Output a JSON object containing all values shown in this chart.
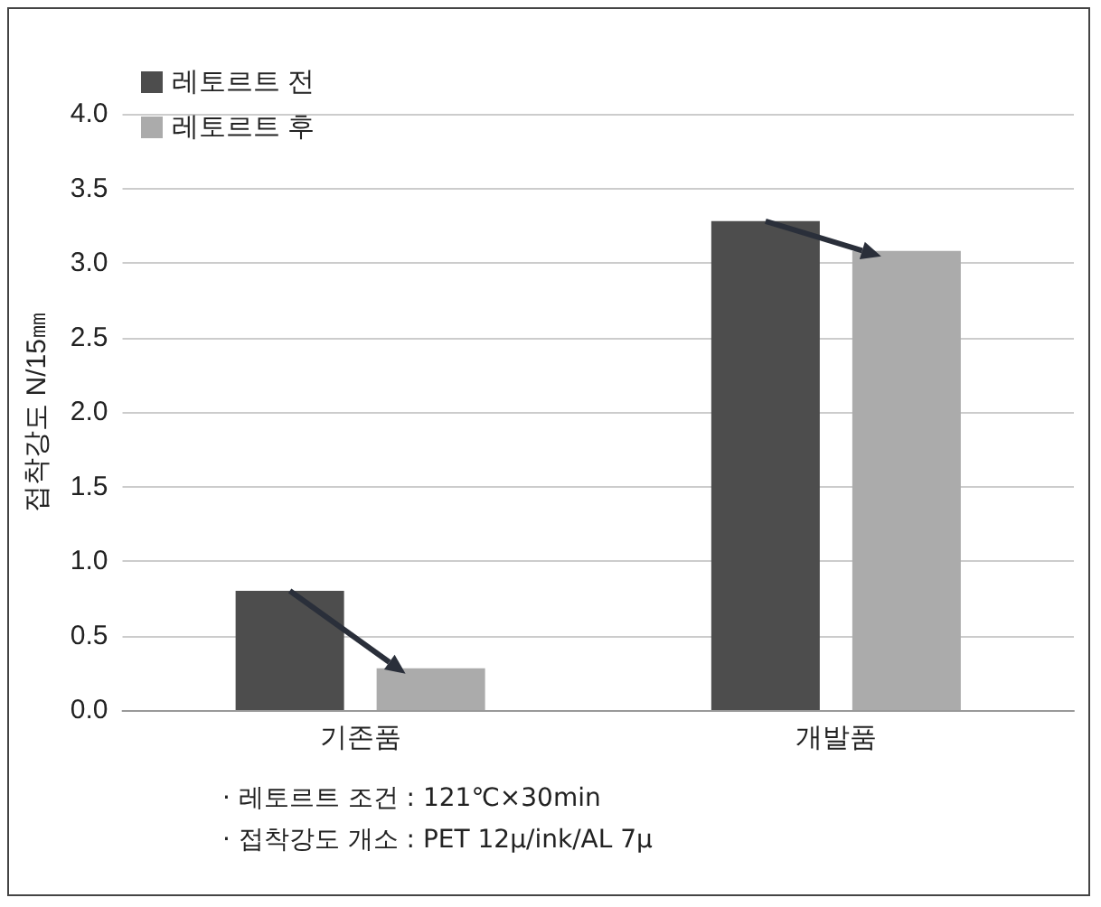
{
  "chart_data": {
    "type": "bar",
    "ylabel": "접착강도 N/15㎜",
    "categories": [
      "기존품",
      "개발품"
    ],
    "series": [
      {
        "name": "레토르트 전",
        "color": "#4d4d4d",
        "values": [
          0.8,
          3.28
        ]
      },
      {
        "name": "레토르트 후",
        "color": "#ababab",
        "values": [
          0.28,
          3.08
        ]
      }
    ],
    "ylim": [
      0,
      4
    ],
    "yticks": [
      {
        "value": 0,
        "label": "0.0"
      },
      {
        "value": 0.5,
        "label": "0.5"
      },
      {
        "value": 1,
        "label": "1.0"
      },
      {
        "value": 1.5,
        "label": "1.5"
      },
      {
        "value": 2,
        "label": "2.0"
      },
      {
        "value": 2.5,
        "label": "2.5"
      },
      {
        "value": 3,
        "label": "3.0"
      },
      {
        "value": 3.5,
        "label": "3.5"
      },
      {
        "value": 4,
        "label": "4.0"
      }
    ],
    "grid": "y",
    "legend": "top left",
    "annotations": [
      "· 레토르트 조건 : 121℃×30min",
      "· 접착강도 개소 : PET 12μ/ink/AL 7μ"
    ]
  }
}
